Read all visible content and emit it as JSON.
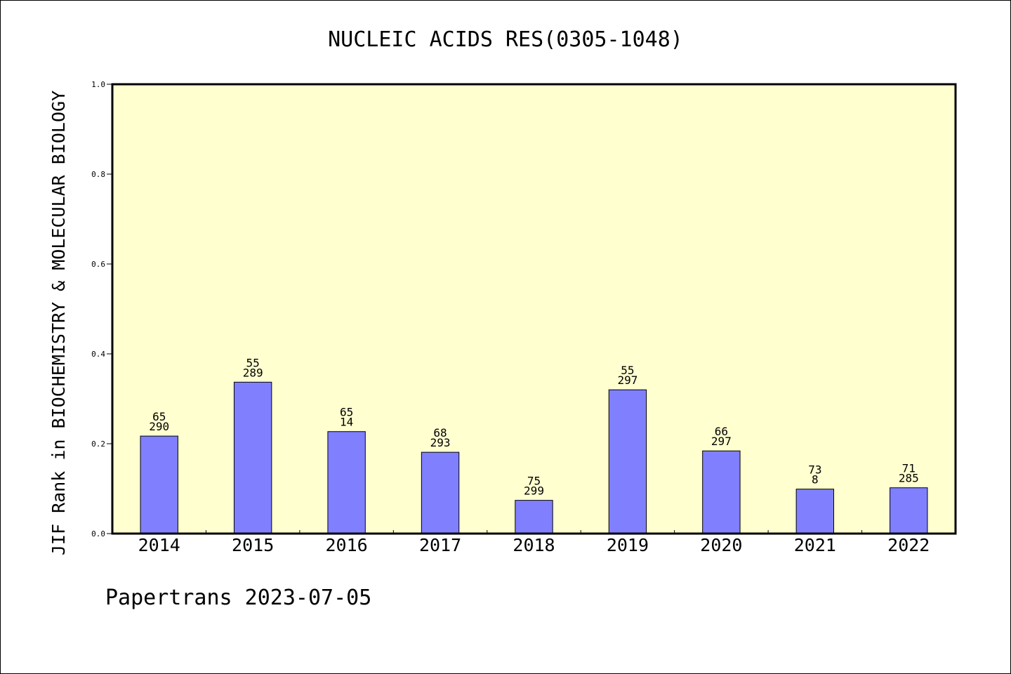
{
  "chart_data": {
    "type": "bar",
    "title": "NUCLEIC ACIDS RES(0305-1048)",
    "xlabel": "",
    "ylabel": "JIF Rank in BIOCHEMISTRY & MOLECULAR BIOLOGY",
    "ylim": [
      0,
      1.0
    ],
    "yticks": [
      "0.0",
      "0.2",
      "0.4",
      "0.6",
      "0.8",
      "1.0"
    ],
    "grid": false,
    "categories": [
      "2014",
      "2015",
      "2016",
      "2017",
      "2018",
      "2019",
      "2020",
      "2021",
      "2022"
    ],
    "values": [
      0.217,
      0.337,
      0.227,
      0.181,
      0.074,
      0.32,
      0.184,
      0.099,
      0.102
    ],
    "labels_top": [
      "65",
      "55",
      "65",
      "68",
      "75",
      "55",
      "66",
      "73",
      "71"
    ],
    "labels_bottom": [
      "290",
      "289",
      "14",
      "293",
      "299",
      "297",
      "297",
      "8",
      "285"
    ],
    "colors": {
      "bar": "#8080ff",
      "plot_background": "#ffffd0",
      "axis": "#000000"
    }
  },
  "footer": {
    "text": "Papertrans 2023-07-05"
  }
}
